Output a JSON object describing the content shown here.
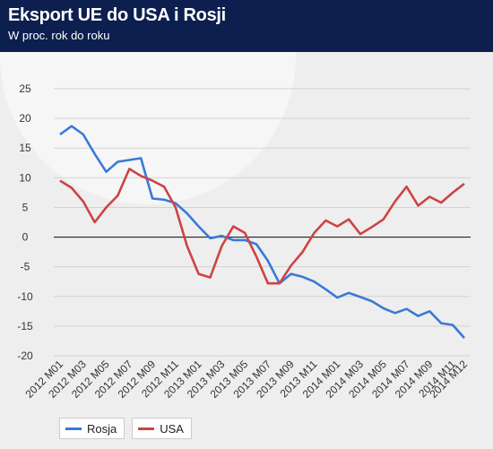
{
  "header": {
    "title": "Eksport UE do USA i Rosji",
    "subtitle": "W proc. rok do roku"
  },
  "chart_data": {
    "type": "line",
    "title": "Eksport UE do USA i Rosji",
    "subtitle": "W proc. rok do roku",
    "xlabel": "",
    "ylabel": "",
    "ylim": [
      -20,
      25
    ],
    "yticks": [
      25,
      20,
      15,
      10,
      5,
      0,
      -5,
      -10,
      -15,
      -20
    ],
    "grid": true,
    "legend_position": "bottom-left",
    "x": [
      "2012 M01",
      "2012 M02",
      "2012 M03",
      "2012 M04",
      "2012 M05",
      "2012 M06",
      "2012 M07",
      "2012 M08",
      "2012 M09",
      "2012 M10",
      "2012 M11",
      "2012 M12",
      "2013 M01",
      "2013 M02",
      "2013 M03",
      "2013 M04",
      "2013 M05",
      "2013 M06",
      "2013 M07",
      "2013 M08",
      "2013 M09",
      "2013 M10",
      "2013 M11",
      "2013 M12",
      "2014 M01",
      "2014 M02",
      "2014 M03",
      "2014 M04",
      "2014 M05",
      "2014 M06",
      "2014 M07",
      "2014 M08",
      "2014 M09",
      "2014 M10",
      "2014 M11",
      "2014 M12"
    ],
    "x_tick_labels": [
      "2012 M01",
      "2012 M03",
      "2012 M05",
      "2012 M07",
      "2012 M09",
      "2012 M11",
      "2013 M01",
      "2013 M03",
      "2013 M05",
      "2013 M07",
      "2013 M09",
      "2013 M11",
      "2014 M01",
      "2014 M03",
      "2014 M05",
      "2014 M07",
      "2014 M09",
      "2014 M11",
      "2014 M12"
    ],
    "series": [
      {
        "name": "Rosja",
        "color": "#3a79d8",
        "values": [
          17.3,
          18.7,
          17.3,
          14.0,
          11.0,
          12.7,
          13.0,
          13.3,
          6.5,
          6.3,
          5.7,
          4.0,
          1.8,
          -0.2,
          0.2,
          -0.5,
          -0.5,
          -1.2,
          -4.0,
          -7.8,
          -6.2,
          -6.7,
          -7.5,
          -8.8,
          -10.2,
          -9.4,
          -10.1,
          -10.8,
          -12.0,
          -12.8,
          -12.1,
          -13.3,
          -12.5,
          -14.5,
          -14.8,
          -17.0
        ]
      },
      {
        "name": "USA",
        "color": "#cc4444",
        "values": [
          9.5,
          8.3,
          6.0,
          2.5,
          5.0,
          7.0,
          11.5,
          10.3,
          9.5,
          8.5,
          5.0,
          -1.5,
          -6.2,
          -6.8,
          -1.5,
          1.8,
          0.7,
          -3.3,
          -7.8,
          -7.8,
          -4.8,
          -2.5,
          0.7,
          2.8,
          1.8,
          3.0,
          0.5,
          1.7,
          3.0,
          6.0,
          8.5,
          5.3,
          6.8,
          5.8,
          7.5,
          9.0
        ]
      }
    ]
  },
  "legend": {
    "items": [
      {
        "label": "Rosja",
        "color": "#3a79d8"
      },
      {
        "label": "USA",
        "color": "#cc4444"
      }
    ]
  }
}
